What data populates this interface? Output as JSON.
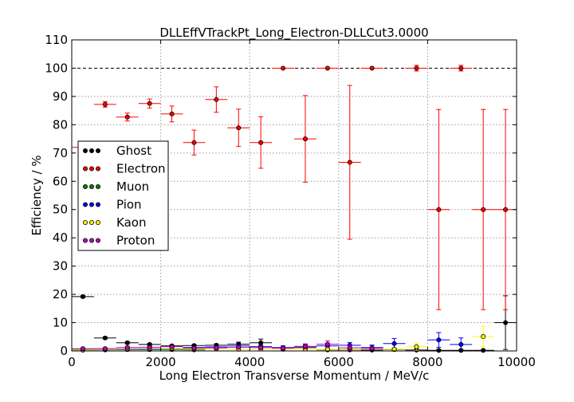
{
  "chart_data": {
    "type": "scatter",
    "title": "DLLEffVTrackPt_Long_Electron-DLLCut3.0000",
    "xlabel": "Long Electron Transverse Momentum / MeV/c",
    "ylabel": "Efficiency / %",
    "xlim": [
      0,
      10000
    ],
    "ylim": [
      0,
      110
    ],
    "xticks": [
      0,
      2000,
      4000,
      6000,
      8000,
      10000
    ],
    "yticks": [
      0,
      10,
      20,
      30,
      40,
      50,
      60,
      70,
      80,
      90,
      100,
      110
    ],
    "grid": true,
    "reference_line": 100,
    "legend_position": "center-left",
    "x_bin_half_width": 250,
    "series": [
      {
        "name": "Ghost",
        "color": "#000000",
        "points": [
          {
            "x": 250,
            "y": 19.2,
            "err": 0.4
          },
          {
            "x": 750,
            "y": 4.6,
            "err": 0.4
          },
          {
            "x": 1250,
            "y": 2.9,
            "err": 0.4
          },
          {
            "x": 1750,
            "y": 2.3,
            "err": 0.4
          },
          {
            "x": 2250,
            "y": 1.8,
            "err": 0.4
          },
          {
            "x": 2750,
            "y": 1.9,
            "err": 0.4
          },
          {
            "x": 3250,
            "y": 2.0,
            "err": 0.5
          },
          {
            "x": 3750,
            "y": 2.4,
            "err": 0.7
          },
          {
            "x": 4250,
            "y": 2.9,
            "err": 1.3
          },
          {
            "x": 4750,
            "y": 1.0,
            "err": 0.8
          },
          {
            "x": 5250,
            "y": 1.2,
            "err": 0.8
          },
          {
            "x": 5750,
            "y": 0.4,
            "err": 0.4
          },
          {
            "x": 6250,
            "y": 0.4,
            "err": 0.4
          },
          {
            "x": 6750,
            "y": 0.3,
            "err": 0.3
          },
          {
            "x": 7250,
            "y": 0.5,
            "err": 0.5
          },
          {
            "x": 7750,
            "y": 0.3,
            "err": 0.3
          },
          {
            "x": 8250,
            "y": 0.2,
            "err": 0.2
          },
          {
            "x": 8750,
            "y": 0.2,
            "err": 0.2
          },
          {
            "x": 9250,
            "y": 0.2,
            "err": 0.2
          },
          {
            "x": 9750,
            "y": 10.0,
            "err": 9.5
          }
        ]
      },
      {
        "name": "Electron",
        "color": "#ff0000",
        "points": [
          {
            "x": 250,
            "y": 72.0,
            "err": 0.0
          },
          {
            "x": 750,
            "y": 87.2,
            "err": 1.0
          },
          {
            "x": 1250,
            "y": 82.7,
            "err": 1.4
          },
          {
            "x": 1750,
            "y": 87.5,
            "err": 1.6
          },
          {
            "x": 2250,
            "y": 83.8,
            "err": 2.8
          },
          {
            "x": 2750,
            "y": 73.7,
            "err": 4.4
          },
          {
            "x": 3250,
            "y": 88.9,
            "err": 4.5
          },
          {
            "x": 3750,
            "y": 78.9,
            "err": 6.6
          },
          {
            "x": 4250,
            "y": 73.7,
            "err": 9.1
          },
          {
            "x": 4750,
            "y": 100.0,
            "err": 0.0
          },
          {
            "x": 5250,
            "y": 75.0,
            "err": 15.3
          },
          {
            "x": 5750,
            "y": 100.0,
            "err": 0.0
          },
          {
            "x": 6250,
            "y": 66.7,
            "err": 27.2
          },
          {
            "x": 6750,
            "y": 100.0,
            "err": 0.0
          },
          {
            "x": 7750,
            "y": 100.0,
            "err": 1.0
          },
          {
            "x": 8250,
            "y": 50.0,
            "err": 35.4
          },
          {
            "x": 8750,
            "y": 100.0,
            "err": 1.0
          },
          {
            "x": 9250,
            "y": 50.0,
            "err": 35.4
          },
          {
            "x": 9750,
            "y": 50.0,
            "err": 35.4
          }
        ]
      },
      {
        "name": "Muon",
        "color": "#008000",
        "points": [
          {
            "x": 250,
            "y": 0.5,
            "err": 0.2
          },
          {
            "x": 750,
            "y": 0.7,
            "err": 0.3
          },
          {
            "x": 1250,
            "y": 0.5,
            "err": 0.3
          },
          {
            "x": 1750,
            "y": 0.5,
            "err": 0.3
          },
          {
            "x": 2250,
            "y": 0.5,
            "err": 0.3
          },
          {
            "x": 2750,
            "y": 0.4,
            "err": 0.3
          }
        ]
      },
      {
        "name": "Pion",
        "color": "#0000ff",
        "points": [
          {
            "x": 250,
            "y": 0.3,
            "err": 0.1
          },
          {
            "x": 750,
            "y": 0.4,
            "err": 0.1
          },
          {
            "x": 1250,
            "y": 0.6,
            "err": 0.2
          },
          {
            "x": 1750,
            "y": 0.6,
            "err": 0.2
          },
          {
            "x": 2250,
            "y": 0.9,
            "err": 0.3
          },
          {
            "x": 2750,
            "y": 1.2,
            "err": 0.4
          },
          {
            "x": 3250,
            "y": 1.4,
            "err": 0.5
          },
          {
            "x": 3750,
            "y": 1.8,
            "err": 0.6
          },
          {
            "x": 4250,
            "y": 1.5,
            "err": 0.6
          },
          {
            "x": 4750,
            "y": 1.2,
            "err": 0.6
          },
          {
            "x": 5250,
            "y": 1.6,
            "err": 0.8
          },
          {
            "x": 5750,
            "y": 1.8,
            "err": 0.9
          },
          {
            "x": 6250,
            "y": 2.0,
            "err": 1.0
          },
          {
            "x": 6750,
            "y": 1.2,
            "err": 0.9
          },
          {
            "x": 7250,
            "y": 2.6,
            "err": 1.8
          },
          {
            "x": 8250,
            "y": 3.9,
            "err": 2.6
          },
          {
            "x": 8750,
            "y": 2.3,
            "err": 2.3
          }
        ]
      },
      {
        "name": "Kaon",
        "color": "#ffff00",
        "points": [
          {
            "x": 250,
            "y": 0.3,
            "err": 0.2
          },
          {
            "x": 750,
            "y": 0.5,
            "err": 0.2
          },
          {
            "x": 1250,
            "y": 0.8,
            "err": 0.3
          },
          {
            "x": 1750,
            "y": 0.9,
            "err": 0.4
          },
          {
            "x": 2250,
            "y": 1.0,
            "err": 0.4
          },
          {
            "x": 2750,
            "y": 0.7,
            "err": 0.4
          },
          {
            "x": 3250,
            "y": 0.8,
            "err": 0.5
          },
          {
            "x": 3750,
            "y": 0.6,
            "err": 0.5
          },
          {
            "x": 4250,
            "y": 0.7,
            "err": 0.6
          },
          {
            "x": 4750,
            "y": 0.6,
            "err": 0.5
          },
          {
            "x": 5250,
            "y": 0.7,
            "err": 0.6
          },
          {
            "x": 5750,
            "y": 0.5,
            "err": 0.5
          },
          {
            "x": 6250,
            "y": 0.5,
            "err": 0.5
          },
          {
            "x": 6750,
            "y": 0.8,
            "err": 0.7
          },
          {
            "x": 7250,
            "y": 0.6,
            "err": 0.6
          },
          {
            "x": 7750,
            "y": 1.5,
            "err": 1.3
          },
          {
            "x": 9250,
            "y": 5.1,
            "err": 3.5
          }
        ]
      },
      {
        "name": "Proton",
        "color": "#bf00bf",
        "points": [
          {
            "x": 250,
            "y": 0.8,
            "err": 0.3
          },
          {
            "x": 750,
            "y": 0.8,
            "err": 0.3
          },
          {
            "x": 1250,
            "y": 1.2,
            "err": 0.4
          },
          {
            "x": 1750,
            "y": 1.3,
            "err": 0.4
          },
          {
            "x": 2250,
            "y": 1.5,
            "err": 0.5
          },
          {
            "x": 2750,
            "y": 1.0,
            "err": 0.5
          },
          {
            "x": 3250,
            "y": 1.1,
            "err": 0.5
          },
          {
            "x": 3750,
            "y": 1.3,
            "err": 0.6
          },
          {
            "x": 4250,
            "y": 1.2,
            "err": 0.7
          },
          {
            "x": 4750,
            "y": 1.0,
            "err": 0.7
          },
          {
            "x": 5250,
            "y": 1.6,
            "err": 0.9
          },
          {
            "x": 5750,
            "y": 2.4,
            "err": 1.2
          },
          {
            "x": 6250,
            "y": 1.1,
            "err": 0.9
          },
          {
            "x": 6750,
            "y": 0.9,
            "err": 0.8
          }
        ]
      }
    ]
  }
}
